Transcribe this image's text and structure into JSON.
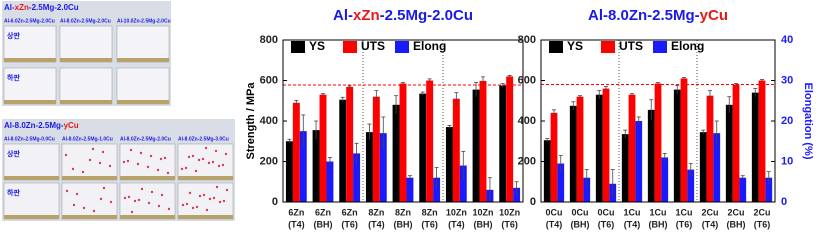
{
  "photos": [
    {
      "title": [
        "Al-",
        "xZn",
        "-2.5Mg-2.0Cu"
      ],
      "labels": [
        "Al-6.0Zn-2.5Mg-2.0Cu",
        "Al-8.0Zn-2.5Mg-2.0Cu",
        "Al-10.0Zn-2.5Mg-2.0Cu"
      ],
      "rows": [
        "상판",
        "하판"
      ]
    },
    {
      "title": [
        "Al-8.0Zn-2.5Mg-",
        "yCu"
      ],
      "labels": [
        "Al-8.0Zn-2.5Mg-0.0Cu",
        "Al-8.0Zn-2.5Mg-1.0Cu",
        "Al-8.0Zn-2.5Mg-2.0Cu",
        "Al-8.0Zn-2.5Mg-3.0Cu"
      ],
      "rows": [
        "상판",
        "하판"
      ]
    }
  ],
  "chart_data": [
    {
      "type": "bar",
      "title": [
        "Al-",
        "xZn",
        "-2.5Mg-2.0Cu"
      ],
      "title_colors": [
        "#1a1ae6",
        "#e61a1a",
        "#1a1ae6"
      ],
      "y_label": "Strength / MPa",
      "categories": [
        [
          "6Zn",
          "(T4)"
        ],
        [
          "6Zn",
          "(BH)"
        ],
        [
          "6Zn",
          "(T6)"
        ],
        [
          "8Zn",
          "(T4)"
        ],
        [
          "8Zn",
          "(BH)"
        ],
        [
          "8Zn",
          "(T6)"
        ],
        [
          "10Zn",
          "(T4)"
        ],
        [
          "10Zn",
          "(BH)"
        ],
        [
          "10Zn",
          "(T6)"
        ]
      ],
      "series": [
        {
          "name": "YS",
          "color": "#000000",
          "values": [
            300,
            355,
            505,
            345,
            480,
            535,
            370,
            555,
            575
          ],
          "errors": [
            10,
            45,
            12,
            40,
            45,
            8,
            8,
            35,
            10
          ]
        },
        {
          "name": "UTS",
          "color": "#ff0000",
          "values": [
            490,
            530,
            568,
            520,
            585,
            600,
            510,
            598,
            620
          ],
          "errors": [
            12,
            5,
            5,
            30,
            5,
            8,
            30,
            20,
            5
          ]
        },
        {
          "name": "Elong",
          "color": "#1a1aff",
          "axis": "y2",
          "values": [
            17.5,
            10,
            12,
            17,
            6,
            6,
            9,
            3,
            3.5
          ],
          "errors": [
            4,
            1,
            2.5,
            4,
            0.5,
            2.5,
            3.5,
            3,
            1.5
          ]
        }
      ],
      "ylim": [
        0,
        800
      ],
      "yticks": [
        0,
        200,
        400,
        600,
        800
      ],
      "y2lim": [
        0,
        40
      ],
      "reference_line": 578
    },
    {
      "type": "bar",
      "title": [
        "Al-8.0Zn-2.5Mg-",
        "yCu"
      ],
      "title_colors": [
        "#1a1ae6",
        "#e61a1a"
      ],
      "y2_label": "Elongation (%)",
      "categories": [
        [
          "0Cu",
          "(T4)"
        ],
        [
          "0Cu",
          "(BH)"
        ],
        [
          "0Cu",
          "(T6)"
        ],
        [
          "1Cu",
          "(T4)"
        ],
        [
          "1Cu",
          "(BH)"
        ],
        [
          "1Cu",
          "(T6)"
        ],
        [
          "2Cu",
          "(T4)"
        ],
        [
          "2Cu",
          "(BH)"
        ],
        [
          "2Cu",
          "(T6)"
        ]
      ],
      "series": [
        {
          "name": "YS",
          "color": "#000000",
          "values": [
            305,
            475,
            530,
            335,
            455,
            555,
            345,
            480,
            540
          ],
          "errors": [
            8,
            20,
            20,
            20,
            50,
            20,
            10,
            40,
            20
          ]
        },
        {
          "name": "UTS",
          "color": "#ff0000",
          "values": [
            440,
            520,
            560,
            530,
            585,
            610,
            525,
            580,
            600
          ],
          "errors": [
            15,
            5,
            10,
            5,
            5,
            5,
            25,
            5,
            5
          ]
        },
        {
          "name": "Elong",
          "color": "#1a1aff",
          "axis": "y2",
          "values": [
            9.5,
            6,
            4.5,
            20,
            11,
            8,
            17,
            6,
            6
          ],
          "errors": [
            2,
            2,
            3.5,
            1,
            1,
            1.5,
            3,
            0.5,
            1.5
          ]
        }
      ],
      "ylim": [
        0,
        800
      ],
      "yticks": [
        0,
        200,
        400,
        600,
        800
      ],
      "y2lim": [
        0,
        40
      ],
      "y2ticks": [
        0,
        10,
        20,
        30,
        40
      ],
      "reference_line": 580
    }
  ]
}
